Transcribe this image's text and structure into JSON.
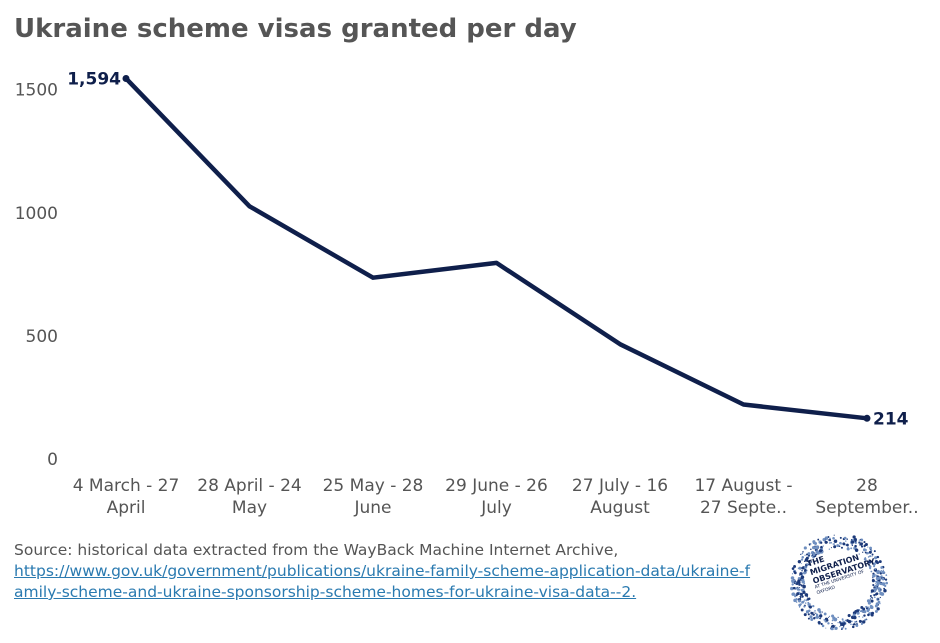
{
  "chart_data": {
    "type": "line",
    "title": "Ukraine scheme visas granted per day",
    "categories": [
      [
        "4 March - 27",
        "April"
      ],
      [
        "28 April - 24",
        "May"
      ],
      [
        "25 May - 28",
        "June"
      ],
      [
        "29 June - 26",
        "July"
      ],
      [
        "27 July - 16",
        "August"
      ],
      [
        "17 August -",
        "27 Septe.."
      ],
      [
        "28",
        "September.."
      ]
    ],
    "series": [
      {
        "values": [
          1594,
          1075,
          785,
          845,
          515,
          270,
          214
        ],
        "color": "#0f1f4b"
      }
    ],
    "data_labels": [
      {
        "index": 0,
        "text": "1,594"
      },
      {
        "index": 6,
        "text": "214"
      }
    ],
    "ylim": [
      0,
      1600
    ],
    "yticks": [
      0,
      500,
      1000,
      1500
    ],
    "grid": false,
    "xlabel": "",
    "ylabel": ""
  },
  "source": {
    "text": "Source: historical data extracted from the WayBack Machine Internet Archive,",
    "link_text": "https://www.gov.uk/government/publications/ukraine-family-scheme-application-data/ukraine-family-scheme-and-ukraine-sponsorship-scheme-homes-for-ukraine-visa-data--2."
  },
  "logo": {
    "line1": "THE",
    "line2": "MIGRATION",
    "line3": "OBSERVATORY",
    "line4": "AT THE UNIVERSITY OF OXFORD"
  },
  "colors": {
    "line": "#0f1f4b",
    "text": "#555555",
    "link": "#2a7ab0"
  }
}
